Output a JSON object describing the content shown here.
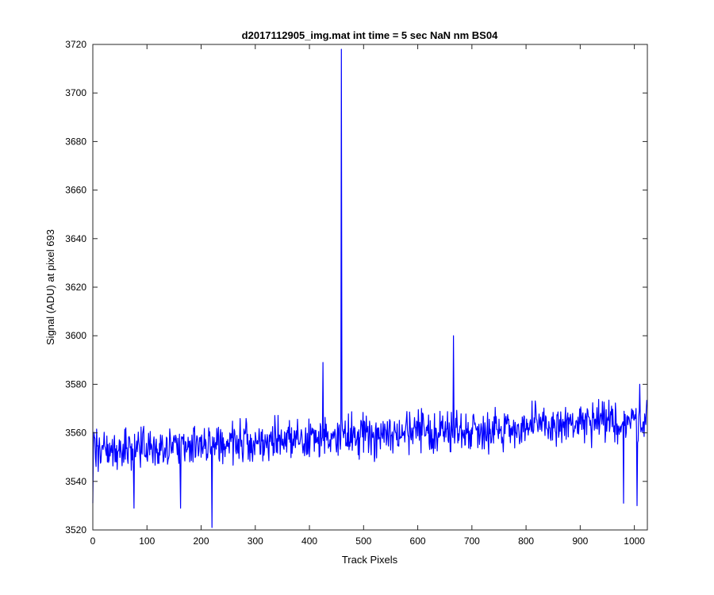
{
  "chart_data": {
    "type": "line",
    "title": "d2017112905_img.mat int time = 5 sec  NaN nm BS04",
    "xlabel": "Track Pixels",
    "ylabel": "Signal (ADU) at pixel 693",
    "xlim": [
      0,
      1024
    ],
    "ylim": [
      3520,
      3720
    ],
    "xticks": [
      0,
      100,
      200,
      300,
      400,
      500,
      600,
      700,
      800,
      900,
      1000
    ],
    "yticks": [
      3520,
      3540,
      3560,
      3580,
      3600,
      3620,
      3640,
      3660,
      3680,
      3700,
      3720
    ],
    "grid": false,
    "color": "#0000ff",
    "noise": {
      "count": 1024,
      "baseline_start": 3553,
      "baseline_end": 3565,
      "amplitude": 9
    },
    "features": [
      {
        "x": 0,
        "y": 3531
      },
      {
        "x": 76,
        "y": 3529
      },
      {
        "x": 162,
        "y": 3529
      },
      {
        "x": 220,
        "y": 3521
      },
      {
        "x": 425,
        "y": 3589
      },
      {
        "x": 459,
        "y": 3718
      },
      {
        "x": 460,
        "y": 3566
      },
      {
        "x": 666,
        "y": 3600
      },
      {
        "x": 980,
        "y": 3531
      },
      {
        "x": 1005,
        "y": 3530
      },
      {
        "x": 1010,
        "y": 3580
      }
    ]
  }
}
